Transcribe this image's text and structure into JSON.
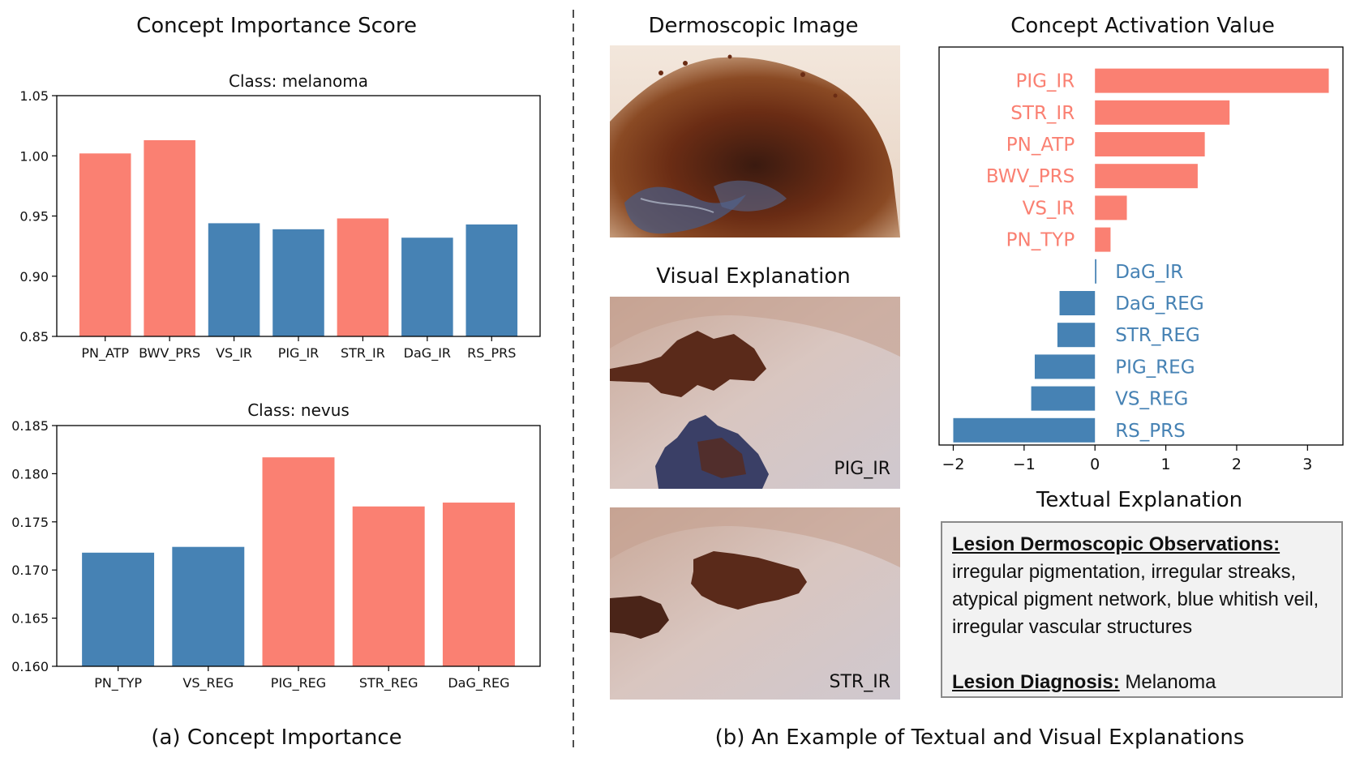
{
  "left_panel": {
    "title": "Concept Importance Score",
    "caption": "(a) Concept Importance"
  },
  "right_panel": {
    "caption": "(b) An Example of Textual and Visual Explanations",
    "dermoscopic_title": "Dermoscopic Image",
    "visual_title": "Visual Explanation",
    "visual_labels": [
      "PIG_IR",
      "STR_IR"
    ],
    "activation_title": "Concept Activation Value",
    "textual_title": "Textual Explanation",
    "textual": {
      "observations_title": "Lesion Dermoscopic Observations:",
      "observations_text": "irregular pigmentation, irregular streaks, atypical pigment network, blue whitish veil, irregular vascular structures",
      "diagnosis_title": "Lesion Diagnosis:",
      "diagnosis_text": " Melanoma"
    }
  },
  "colors": {
    "melanoma": "#fa8072",
    "nevus": "#4682b4"
  },
  "chart_data": [
    {
      "type": "bar",
      "title": "Class: melanoma",
      "categories": [
        "PN_ATP",
        "BWV_PRS",
        "VS_IR",
        "PIG_IR",
        "STR_IR",
        "DaG_IR",
        "RS_PRS"
      ],
      "values": [
        1.002,
        1.013,
        0.944,
        0.939,
        0.948,
        0.932,
        0.943
      ],
      "bar_colors": [
        "melanoma",
        "melanoma",
        "nevus",
        "nevus",
        "melanoma",
        "nevus",
        "nevus"
      ],
      "ylim": [
        0.85,
        1.05
      ],
      "yticks": [
        "0.85",
        "0.90",
        "0.95",
        "1.00",
        "1.05"
      ],
      "xlabel": "",
      "ylabel": ""
    },
    {
      "type": "bar",
      "title": "Class: nevus",
      "categories": [
        "PN_TYP",
        "VS_REG",
        "PIG_REG",
        "STR_REG",
        "DaG_REG"
      ],
      "values": [
        0.1718,
        0.1724,
        0.1817,
        0.1766,
        0.177
      ],
      "bar_colors": [
        "nevus",
        "nevus",
        "melanoma",
        "melanoma",
        "melanoma"
      ],
      "ylim": [
        0.16,
        0.185
      ],
      "yticks": [
        "0.160",
        "0.165",
        "0.170",
        "0.175",
        "0.180",
        "0.185"
      ],
      "xlabel": "",
      "ylabel": ""
    },
    {
      "type": "bar",
      "orientation": "horizontal",
      "title": "Concept Activation Value",
      "categories": [
        "PIG_IR",
        "STR_IR",
        "PN_ATP",
        "BWV_PRS",
        "VS_IR",
        "PN_TYP",
        "DaG_IR",
        "DaG_REG",
        "STR_REG",
        "PIG_REG",
        "VS_REG",
        "RS_PRS"
      ],
      "values": [
        3.3,
        1.9,
        1.55,
        1.45,
        0.45,
        0.22,
        0.02,
        -0.5,
        -0.53,
        -0.85,
        -0.9,
        -2.0
      ],
      "bar_colors": [
        "melanoma",
        "melanoma",
        "melanoma",
        "melanoma",
        "melanoma",
        "melanoma",
        "nevus",
        "nevus",
        "nevus",
        "nevus",
        "nevus",
        "nevus"
      ],
      "xlim": [
        -2.2,
        3.5
      ],
      "xticks": [
        "−2",
        "−1",
        "0",
        "1",
        "2",
        "3"
      ],
      "xtick_values": [
        -2,
        -1,
        0,
        1,
        2,
        3
      ],
      "xlabel": "Textual Explanation"
    }
  ]
}
